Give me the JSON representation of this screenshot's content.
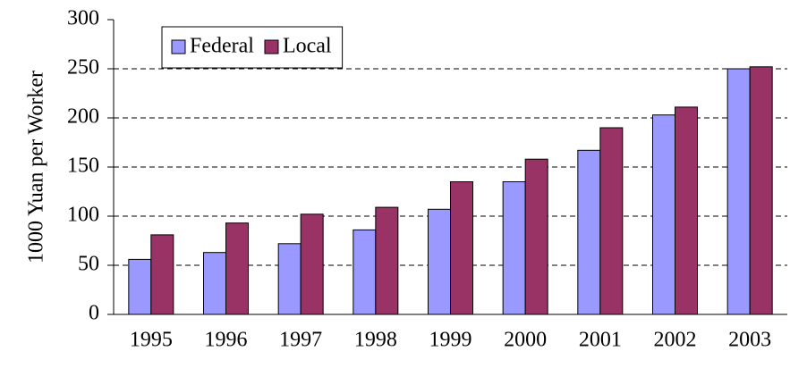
{
  "chart_data": {
    "type": "bar",
    "y_label": "1000 Yuan per Worker",
    "categories": [
      "1995",
      "1996",
      "1997",
      "1998",
      "1999",
      "2000",
      "2001",
      "2002",
      "2003"
    ],
    "series": [
      {
        "name": "Federal",
        "color": "#9999ff",
        "values": [
          56,
          63,
          72,
          86,
          107,
          135,
          167,
          203,
          250
        ]
      },
      {
        "name": "Local",
        "color": "#993366",
        "values": [
          81,
          93,
          102,
          109,
          135,
          158,
          190,
          211,
          252
        ]
      }
    ],
    "ylim": [
      0,
      300
    ],
    "yticks": [
      0,
      50,
      100,
      150,
      200,
      250,
      300
    ],
    "grid": true,
    "legend": "top-left"
  }
}
